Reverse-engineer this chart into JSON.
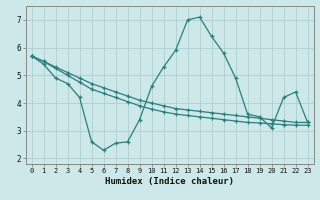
{
  "xlabel": "Humidex (Indice chaleur)",
  "bg_color": "#cce8e8",
  "line_color": "#2e7d7d",
  "grid_color": "#b0cece",
  "xlim": [
    -0.5,
    23.5
  ],
  "ylim": [
    1.8,
    7.5
  ],
  "xticks": [
    0,
    1,
    2,
    3,
    4,
    5,
    6,
    7,
    8,
    9,
    10,
    11,
    12,
    13,
    14,
    15,
    16,
    17,
    18,
    19,
    20,
    21,
    22,
    23
  ],
  "yticks": [
    2,
    3,
    4,
    5,
    6,
    7
  ],
  "line1_x": [
    0,
    1,
    2,
    3,
    4,
    5,
    6,
    7,
    8,
    9,
    10,
    11,
    12,
    13,
    14,
    15,
    16,
    17,
    18,
    19,
    20,
    21,
    22,
    23
  ],
  "line1_y": [
    5.7,
    5.4,
    4.9,
    4.7,
    4.2,
    2.6,
    2.3,
    2.55,
    2.6,
    3.4,
    4.6,
    5.3,
    5.9,
    7.0,
    7.1,
    6.4,
    5.8,
    4.9,
    3.6,
    3.5,
    3.1,
    4.2,
    4.4,
    3.3
  ],
  "line2_x": [
    0,
    1,
    2,
    3,
    4,
    5,
    6,
    7,
    8,
    9,
    10,
    11,
    12,
    13,
    14,
    15,
    16,
    17,
    18,
    19,
    20,
    21,
    22,
    23
  ],
  "line2_y": [
    5.7,
    5.5,
    5.3,
    5.1,
    4.9,
    4.7,
    4.55,
    4.4,
    4.25,
    4.1,
    4.0,
    3.9,
    3.8,
    3.75,
    3.7,
    3.65,
    3.6,
    3.55,
    3.5,
    3.45,
    3.4,
    3.35,
    3.3,
    3.3
  ],
  "line3_x": [
    0,
    1,
    2,
    3,
    4,
    5,
    6,
    7,
    8,
    9,
    10,
    11,
    12,
    13,
    14,
    15,
    16,
    17,
    18,
    19,
    20,
    21,
    22,
    23
  ],
  "line3_y": [
    5.7,
    5.5,
    5.25,
    5.0,
    4.75,
    4.5,
    4.35,
    4.2,
    4.05,
    3.9,
    3.78,
    3.68,
    3.6,
    3.55,
    3.5,
    3.45,
    3.4,
    3.35,
    3.3,
    3.28,
    3.25,
    3.22,
    3.2,
    3.2
  ]
}
